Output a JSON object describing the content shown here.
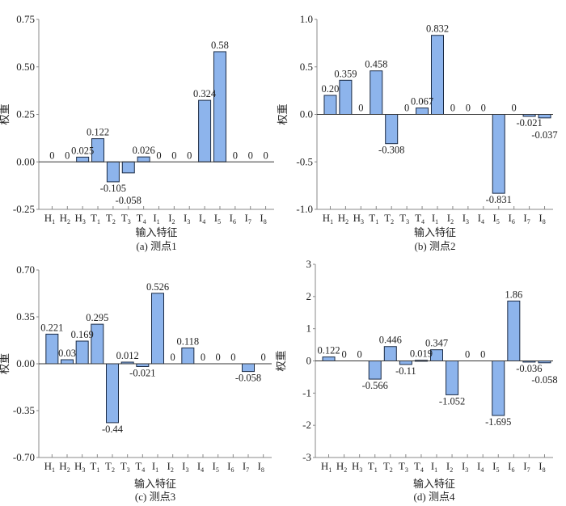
{
  "colors": {
    "bar": "#8db4ec",
    "bar_stroke": "#1a2a44",
    "axis": "#888888",
    "zero_line": "#333333"
  },
  "chart_data": [
    {
      "type": "bar",
      "caption": "(a) 测点1",
      "xlabel": "输入特征",
      "ylabel": "权重",
      "ylim": [
        -0.25,
        0.75
      ],
      "yticks": [
        "-0.25",
        "0.00",
        "0.25",
        "0.50",
        "0.75"
      ],
      "ytick_values": [
        -0.25,
        0,
        0.25,
        0.5,
        0.75
      ],
      "categories": [
        "H1",
        "H2",
        "H3",
        "T1",
        "T2",
        "T3",
        "T4",
        "I1",
        "I2",
        "I3",
        "I4",
        "I5",
        "I6",
        "I7",
        "I8"
      ],
      "values": [
        0,
        0,
        0.025,
        0.122,
        -0.105,
        -0.058,
        0.026,
        0,
        0,
        0,
        0.324,
        0.58,
        0,
        0,
        0
      ],
      "labels": [
        "0",
        "0",
        "0.025",
        "0.122",
        "-0.105",
        "-0.058",
        "0.026",
        "0",
        "0",
        "0",
        "0.324",
        "0.58",
        "0",
        "0",
        "0"
      ]
    },
    {
      "type": "bar",
      "caption": "(b) 测点2",
      "xlabel": "输入特征",
      "ylabel": "权重",
      "ylim": [
        -1.0,
        1.0
      ],
      "yticks": [
        "-1.0",
        "-0.5",
        "0.0",
        "0.5",
        "1.0"
      ],
      "ytick_values": [
        -1,
        -0.5,
        0,
        0.5,
        1
      ],
      "categories": [
        "H1",
        "H2",
        "H3",
        "T1",
        "T2",
        "T3",
        "T4",
        "I1",
        "I2",
        "I3",
        "I4",
        "I5",
        "I6",
        "I7",
        "I8"
      ],
      "values": [
        0.2,
        0.359,
        0,
        0.458,
        -0.308,
        0,
        0.067,
        0.832,
        0,
        0,
        0,
        -0.831,
        0,
        -0.021,
        -0.037
      ],
      "labels": [
        "0.20",
        "0.359",
        "0",
        "0.458",
        "-0.308",
        "0",
        "0.067",
        "0.832",
        "0",
        "0",
        "0",
        "-0.831",
        "0",
        "-0.021",
        "-0.037"
      ]
    },
    {
      "type": "bar",
      "caption": "(c) 测点3",
      "xlabel": "输入特征",
      "ylabel": "权重",
      "ylim": [
        -0.7,
        0.7
      ],
      "yticks": [
        "-0.70",
        "-0.35",
        "0.00",
        "0.35",
        "0.70"
      ],
      "ytick_values": [
        -0.7,
        -0.35,
        0,
        0.35,
        0.7
      ],
      "categories": [
        "H1",
        "H2",
        "H3",
        "T1",
        "T2",
        "T3",
        "T4",
        "I1",
        "I2",
        "I3",
        "I4",
        "I5",
        "I6",
        "I7",
        "I8"
      ],
      "values": [
        0.221,
        0.03,
        0.169,
        0.295,
        -0.44,
        0.012,
        -0.021,
        0.526,
        0,
        0.118,
        0,
        0,
        0,
        -0.058,
        0
      ],
      "labels": [
        "0.221",
        "0.03",
        "0.169",
        "0.295",
        "-0.44",
        "0.012",
        "-0.021",
        "0.526",
        "0",
        "0.118",
        "0",
        "0",
        "0",
        "-0.058",
        "0"
      ]
    },
    {
      "type": "bar",
      "caption": "(d) 测点4",
      "xlabel": "输入特征",
      "ylabel": "权重",
      "ylim": [
        -3,
        3
      ],
      "yticks": [
        "-3",
        "-2",
        "-1",
        "0",
        "1",
        "2",
        "3"
      ],
      "ytick_values": [
        -3,
        -2,
        -1,
        0,
        1,
        2,
        3
      ],
      "categories": [
        "H1",
        "H2",
        "H3",
        "T1",
        "T2",
        "T3",
        "T4",
        "I1",
        "I2",
        "I3",
        "I4",
        "I5",
        "I6",
        "I7",
        "I8"
      ],
      "values": [
        0.122,
        0,
        0,
        -0.566,
        0.446,
        -0.11,
        0.019,
        0.347,
        -1.052,
        0,
        0,
        -1.695,
        1.86,
        -0.036,
        -0.058
      ],
      "labels": [
        "0.122",
        "0",
        "0",
        "-0.566",
        "0.446",
        "-0.11",
        "0.019",
        "0.347",
        "-1.052",
        "0",
        "0",
        "-1.695",
        "1.86",
        "-0.036",
        "-0.058"
      ]
    }
  ]
}
